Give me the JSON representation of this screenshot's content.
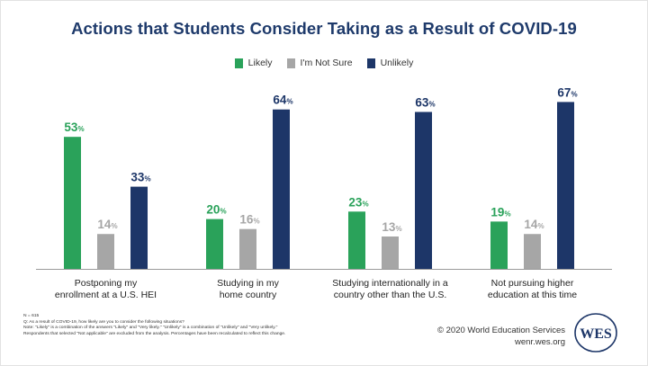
{
  "chart_data": {
    "type": "bar",
    "title": "Actions that Students Consider Taking as a Result of COVID-19",
    "categories": [
      [
        "Postponing my",
        "enrollment at a U.S. HEI"
      ],
      [
        "Studying in my",
        "home country"
      ],
      [
        "Studying internationally in a",
        "country other than the U.S."
      ],
      [
        "Not pursuing higher",
        "education at this time"
      ]
    ],
    "series": [
      {
        "name": "Likely",
        "color": "#2aa25a",
        "values": [
          53,
          20,
          23,
          19
        ]
      },
      {
        "name": "I'm Not Sure",
        "color": "#a6a6a6",
        "values": [
          14,
          16,
          13,
          14
        ]
      },
      {
        "name": "Unlikely",
        "color": "#1d3668",
        "values": [
          33,
          64,
          63,
          67
        ]
      }
    ],
    "value_suffix": "%",
    "ylim": [
      0,
      70
    ],
    "xlabel": "",
    "ylabel": "",
    "legend_position": "top-center"
  },
  "footnotes": [
    "N = 615",
    "Q: As a result of COVID-19, how likely are you to consider the following situations?",
    "Note: \"Likely\" is a combination of the answers \"Likely\" and \"Very likely.\" \"Unlikely\" is a combination of \"Unlikely\" and \"Very unlikely.\"",
    "Respondents that selected \"Not applicable\" are excluded from the analysis. Percentages have been recalculated to reflect this change."
  ],
  "credit": {
    "copyright": "© 2020 World Education Services",
    "url": "wenr.wes.org"
  },
  "logo": {
    "text": "WES",
    "color": "#1d3668"
  }
}
